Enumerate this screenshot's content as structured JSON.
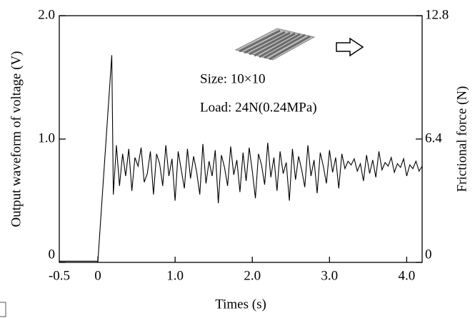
{
  "chart_data": {
    "type": "line",
    "x_label": "Times (s)",
    "y_label": "Output waveform of voltage (V)",
    "y2_label": "Frictional force (N)",
    "annotations": [
      "Size: 10×10",
      "Load: 24N(0.24MPa)"
    ],
    "xlim": [
      -0.5,
      4.2
    ],
    "xticks": [
      {
        "value": -0.5,
        "label": "-0.5"
      },
      0,
      {
        "value": 1,
        "label": "1.0"
      },
      {
        "value": 2,
        "label": "2.0"
      },
      {
        "value": 3,
        "label": "3.0"
      },
      {
        "value": 4,
        "label": "4.0"
      }
    ],
    "ylim": [
      0,
      2
    ],
    "yticks": [
      0,
      {
        "value": 1,
        "label": "1.0"
      },
      {
        "value": 2,
        "label": "2.0"
      }
    ],
    "y2lim": [
      0,
      12.8
    ],
    "y2ticks": [
      0,
      6.4,
      12.8
    ],
    "color": "#000000",
    "x": [
      -0.5,
      0,
      0.18,
      0.2,
      0.24,
      0.28,
      0.32,
      0.36,
      0.4,
      0.44,
      0.48,
      0.52,
      0.56,
      0.6,
      0.64,
      0.68,
      0.72,
      0.76,
      0.8,
      0.84,
      0.88,
      0.92,
      0.96,
      1.0,
      1.04,
      1.08,
      1.12,
      1.16,
      1.2,
      1.24,
      1.28,
      1.32,
      1.36,
      1.4,
      1.44,
      1.48,
      1.52,
      1.56,
      1.6,
      1.64,
      1.68,
      1.72,
      1.76,
      1.8,
      1.84,
      1.88,
      1.92,
      1.96,
      2.0,
      2.04,
      2.08,
      2.12,
      2.16,
      2.2,
      2.24,
      2.28,
      2.32,
      2.36,
      2.4,
      2.44,
      2.48,
      2.52,
      2.56,
      2.6,
      2.64,
      2.68,
      2.72,
      2.76,
      2.8,
      2.84,
      2.88,
      2.92,
      2.96,
      3.0,
      3.04,
      3.08,
      3.12,
      3.16,
      3.2,
      3.24,
      3.28,
      3.32,
      3.36,
      3.4,
      3.44,
      3.48,
      3.52,
      3.56,
      3.6,
      3.64,
      3.68,
      3.72,
      3.76,
      3.8,
      3.84,
      3.88,
      3.92,
      3.96,
      4.0,
      4.04,
      4.08,
      4.12,
      4.16,
      4.2
    ],
    "values": [
      0.01,
      0.01,
      1.68,
      0.55,
      0.95,
      0.62,
      0.88,
      0.7,
      0.92,
      0.58,
      0.85,
      0.78,
      0.93,
      0.65,
      0.72,
      0.9,
      0.55,
      0.88,
      0.8,
      0.62,
      0.95,
      0.7,
      0.84,
      0.5,
      0.9,
      0.75,
      0.6,
      0.92,
      0.68,
      0.86,
      0.73,
      0.55,
      0.96,
      0.64,
      0.82,
      0.7,
      0.91,
      0.48,
      0.87,
      0.77,
      0.62,
      0.94,
      0.71,
      0.83,
      0.57,
      0.89,
      0.66,
      0.93,
      0.74,
      0.52,
      0.88,
      0.79,
      0.63,
      0.97,
      0.69,
      0.85,
      0.58,
      0.9,
      0.72,
      0.81,
      0.5,
      0.92,
      0.67,
      0.86,
      0.75,
      0.61,
      0.95,
      0.7,
      0.83,
      0.56,
      0.89,
      0.78,
      0.64,
      0.91,
      0.73,
      0.85,
      0.6,
      0.88,
      0.76,
      0.82,
      0.79,
      0.84,
      0.74,
      0.8,
      0.66,
      0.87,
      0.72,
      0.83,
      0.69,
      0.9,
      0.75,
      0.81,
      0.78,
      0.85,
      0.73,
      0.8,
      0.77,
      0.84,
      0.7,
      0.79,
      0.76,
      0.82,
      0.74,
      0.78
    ]
  }
}
